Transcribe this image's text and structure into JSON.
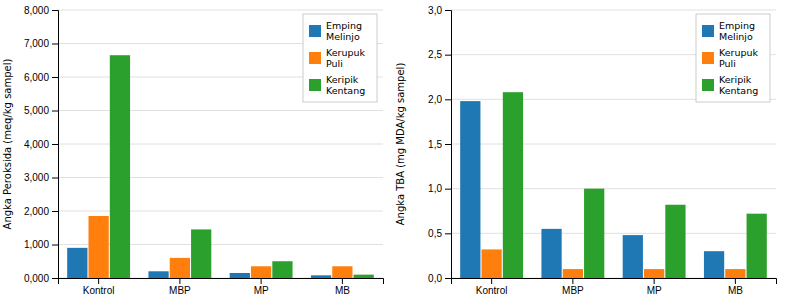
{
  "chart_data": [
    {
      "type": "bar",
      "ylabel": "Angka Peroksida (meq/kg sampel)",
      "categories": [
        "Kontrol",
        "MBP",
        "MP",
        "MB"
      ],
      "series": [
        {
          "name": "Emping\nMelinjo",
          "values": [
            900,
            200,
            150,
            80
          ]
        },
        {
          "name": "Kerupuk\nPuli",
          "values": [
            1850,
            600,
            350,
            350
          ]
        },
        {
          "name": "Keripik\nKentang",
          "values": [
            6650,
            1450,
            500,
            100
          ]
        }
      ],
      "ylim": [
        0,
        8000
      ],
      "yticks": [
        {
          "value": 0,
          "label": "0,000"
        },
        {
          "value": 1000,
          "label": "1,000"
        },
        {
          "value": 2000,
          "label": "2,000"
        },
        {
          "value": 3000,
          "label": "3,000"
        },
        {
          "value": 4000,
          "label": "4,000"
        },
        {
          "value": 5000,
          "label": "5,000"
        },
        {
          "value": 6000,
          "label": "6,000"
        },
        {
          "value": 7000,
          "label": "7,000"
        },
        {
          "value": 8000,
          "label": "8,000"
        }
      ],
      "grid": true,
      "legend": "upper-right"
    },
    {
      "type": "bar",
      "ylabel": "Angka TBA (mg MDA/kg sampel)",
      "categories": [
        "Kontrol",
        "MBP",
        "MP",
        "MB"
      ],
      "series": [
        {
          "name": "Emping\nMelinjo",
          "values": [
            1.98,
            0.55,
            0.48,
            0.3
          ]
        },
        {
          "name": "Kerupuk\nPuli",
          "values": [
            0.32,
            0.1,
            0.1,
            0.1
          ]
        },
        {
          "name": "Keripik\nKentang",
          "values": [
            2.08,
            1.0,
            0.82,
            0.72
          ]
        }
      ],
      "ylim": [
        0,
        3.0
      ],
      "yticks": [
        {
          "value": 0.0,
          "label": "0,0"
        },
        {
          "value": 0.5,
          "label": "0,5"
        },
        {
          "value": 1.0,
          "label": "1,0"
        },
        {
          "value": 1.5,
          "label": "1,5"
        },
        {
          "value": 2.0,
          "label": "2,0"
        },
        {
          "value": 2.5,
          "label": "2,5"
        },
        {
          "value": 3.0,
          "label": "3,0"
        }
      ],
      "grid": true,
      "legend": "upper-right"
    }
  ]
}
